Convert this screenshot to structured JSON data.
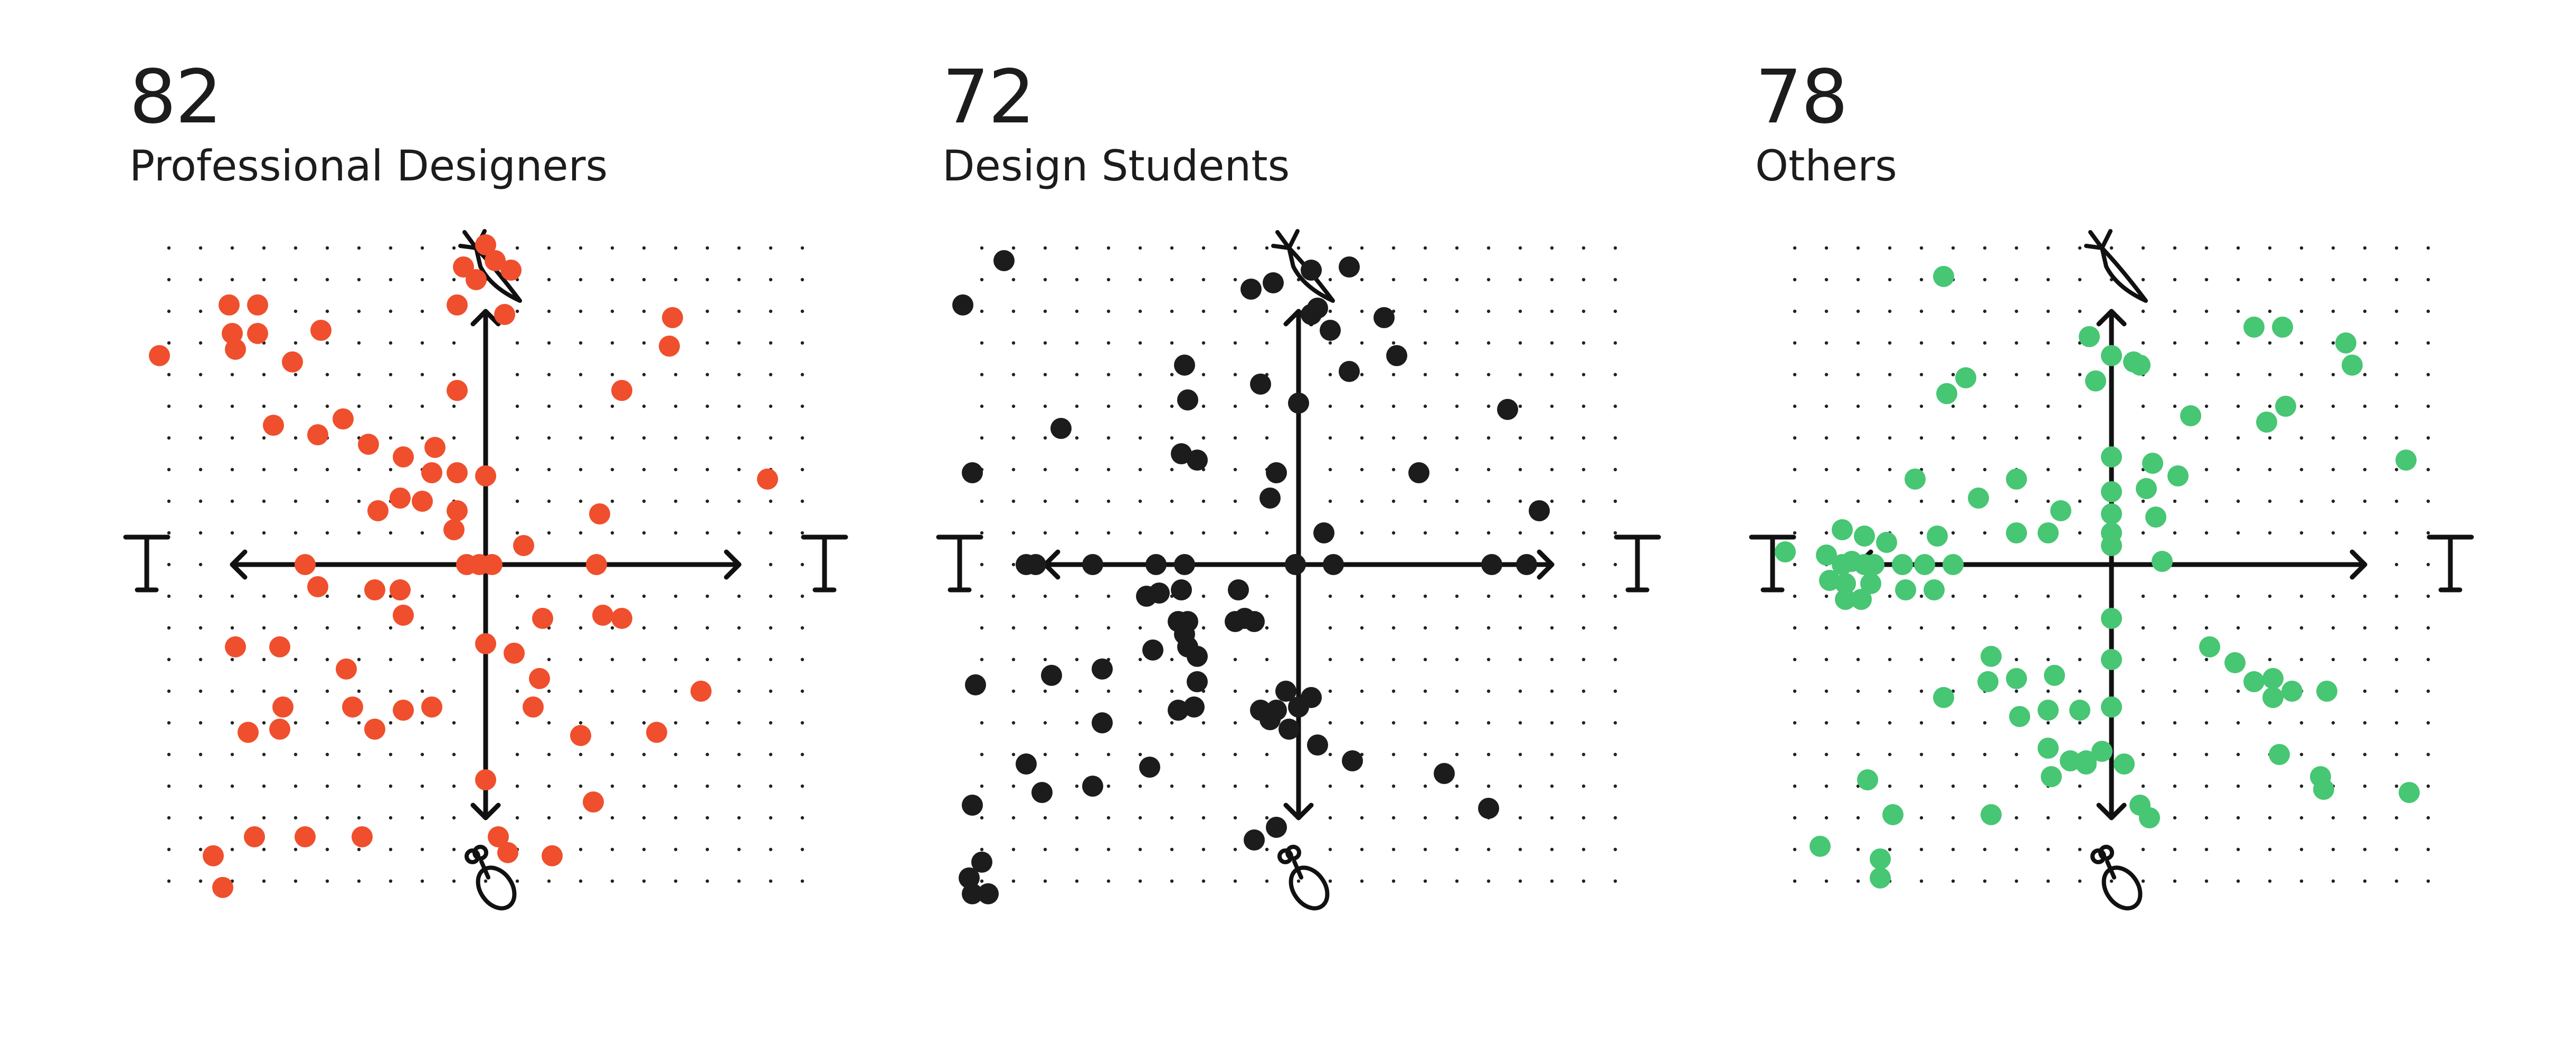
{
  "colors": {
    "professional": "#ef4f2c",
    "students": "#1c1c1c",
    "others": "#47c673",
    "axes": "#111111",
    "grid": "#222222"
  },
  "icons": {
    "top": "carrot-icon",
    "bottom": "drumstick-icon",
    "left": "tofu-T-icon",
    "right": "tofu-T-icon"
  },
  "chart_data": [
    {
      "type": "scatter",
      "value": "82",
      "label": "Professional Designers",
      "xlim": [
        -10,
        10
      ],
      "ylim": [
        -10,
        10
      ],
      "grid": true,
      "x": [
        0,
        0.3,
        -0.7,
        0.8,
        -0.3,
        -0.9,
        0.6,
        -8.1,
        -7.2,
        -8.0,
        -7.2,
        -5.2,
        -10.3,
        -7.9,
        -6.1,
        5.9,
        5.8,
        4.3,
        -0.9,
        -6.7,
        -5.3,
        -4.5,
        -2.6,
        -3.7,
        -1.6,
        -0.9,
        -1.7,
        0,
        8.9,
        -2.0,
        -2.7,
        -0.9,
        -3.4,
        -1.0,
        1.2,
        3.6,
        -5.7,
        -0.6,
        -0.2,
        0.2,
        -5.3,
        -3.5,
        -2.7,
        3.5,
        -2.6,
        1.8,
        3.7,
        4.3,
        -7.9,
        -6.5,
        -4.4,
        0,
        0.9,
        1.7,
        -6.4,
        -4.2,
        -1.7,
        1.5,
        6.8,
        -7.5,
        -6.5,
        -3.5,
        -2.6,
        3.0,
        5.4,
        0,
        3.4,
        -7.3,
        -5.7,
        -3.9,
        0.4,
        -8.6,
        -8.3,
        2.1,
        0.7
      ],
      "y": [
        10.1,
        9.6,
        9.4,
        9.3,
        9.0,
        8.2,
        7.9,
        8.2,
        8.2,
        7.3,
        7.3,
        7.4,
        6.6,
        6.8,
        6.4,
        7.8,
        6.9,
        5.5,
        5.5,
        4.4,
        4.1,
        4.6,
        3.4,
        3.8,
        3.7,
        2.9,
        2.9,
        2.8,
        2.7,
        2.0,
        2.1,
        1.7,
        1.7,
        1.1,
        0.6,
        1.6,
        0,
        0,
        0,
        0,
        -0.7,
        -0.8,
        -0.8,
        0,
        -1.6,
        -1.7,
        -1.6,
        -1.7,
        -2.6,
        -2.6,
        -3.3,
        -2.5,
        -2.8,
        -3.6,
        -4.5,
        -4.5,
        -4.5,
        -4.5,
        -4.0,
        -5.3,
        -5.2,
        -5.2,
        -4.6,
        -5.4,
        -5.3,
        -6.8,
        -7.5,
        -8.6,
        -8.6,
        -8.6,
        -8.6,
        -9.2,
        -10.2,
        -9.2,
        -9.1
      ]
    },
    {
      "type": "scatter",
      "value": "72",
      "label": "Design Students",
      "xlim": [
        -10,
        10
      ],
      "ylim": [
        -10,
        10
      ],
      "grid": true,
      "x": [
        -9.3,
        -10.6,
        0.4,
        1.6,
        -1.5,
        -0.8,
        0.4,
        0.6,
        1.0,
        2.7,
        -3.6,
        -1.2,
        1.6,
        3.1,
        -7.5,
        6.6,
        -3.5,
        -3.7,
        -0.9,
        -3.2,
        -10.3,
        -0.7,
        3.8,
        7.6,
        0,
        -8.6,
        -8.3,
        -6.5,
        -4.5,
        -3.6,
        -0.1,
        6.1,
        7.2,
        0.8,
        1.1,
        -4.8,
        -4.4,
        -3.7,
        -1.9,
        -3.8,
        -3.5,
        -2.0,
        -1.7,
        -1.4,
        -10.2,
        -7.8,
        -6.2,
        -3.2,
        -4.6,
        -3.5,
        -3.6,
        -3.2,
        -0.4,
        -3.8,
        -6.2,
        -3.3,
        -8.6,
        -10.3,
        -8.1,
        -6.5,
        -4.7,
        0.6,
        -0.3,
        -1.2,
        -0.9,
        -0.7,
        0,
        0.4,
        1.7,
        4.6,
        6.0,
        -0.7,
        -1.4,
        -10.0,
        -10.4,
        -10.3,
        -9.8
      ],
      "y": [
        9.6,
        8.2,
        9.3,
        9.4,
        8.7,
        8.9,
        7.9,
        8.1,
        7.4,
        7.8,
        6.3,
        5.7,
        6.1,
        6.6,
        4.3,
        4.9,
        5.2,
        3.5,
        2.1,
        3.3,
        2.9,
        2.9,
        2.9,
        1.7,
        5.1,
        0,
        0,
        0,
        0,
        0,
        0,
        0,
        0,
        1.0,
        0,
        -1.0,
        -0.9,
        -0.8,
        -0.8,
        -1.8,
        -1.8,
        -1.8,
        -1.7,
        -1.8,
        -3.8,
        -3.5,
        -3.3,
        -3.7,
        -2.7,
        -2.6,
        -2.2,
        -2.9,
        -4.0,
        -4.6,
        -5.0,
        -4.5,
        -6.3,
        -7.6,
        -7.2,
        -7.0,
        -6.4,
        -5.7,
        -5.2,
        -4.6,
        -4.9,
        -4.6,
        -4.5,
        -4.2,
        -6.2,
        -6.6,
        -7.7,
        -8.3,
        -8.7,
        -9.4,
        -9.9,
        -10.4,
        -10.4
      ]
    },
    {
      "type": "scatter",
      "value": "78",
      "label": "Others",
      "xlim": [
        -10,
        10
      ],
      "ylim": [
        -10,
        10
      ],
      "grid": true,
      "x": [
        -5.3,
        4.5,
        5.4,
        7.4,
        7.6,
        -4.6,
        -5.2,
        -0.7,
        0,
        0.7,
        0.9,
        -0.5,
        2.5,
        4.9,
        5.5,
        9.3,
        -6.2,
        -4.2,
        -3.0,
        -1.6,
        -3.0,
        -2.0,
        1.1,
        1.3,
        2.1,
        -8.5,
        -7.8,
        -7.1,
        -5.5,
        0,
        0,
        0,
        0,
        0,
        1.4,
        1.6,
        -9.0,
        -8.2,
        -7.8,
        -8.5,
        -7.5,
        -6.6,
        -5.9,
        -5.0,
        -8.9,
        -8.4,
        -7.6,
        -10.3,
        -5.6,
        -8.4,
        -7.9,
        -6.5,
        0,
        0,
        0,
        -1.0,
        -1.8,
        3.1,
        3.9,
        4.5,
        5.1,
        5.1,
        5.7,
        6.8,
        -3.8,
        -3.9,
        -3.0,
        -2.9,
        -2.0,
        -2.0,
        -5.3,
        -0.8,
        0.4,
        0.9,
        -1.9,
        -0.8,
        1.2,
        5.3,
        6.6,
        6.7,
        9.4,
        -7.7,
        -6.9,
        -3.8,
        -1.3,
        -0.3,
        -9.2,
        -7.3,
        -7.3
      ],
      "y": [
        9.1,
        7.5,
        7.5,
        7.0,
        6.3,
        5.9,
        5.4,
        7.2,
        6.6,
        6.4,
        6.3,
        5.8,
        4.7,
        4.5,
        5.0,
        3.3,
        2.7,
        2.1,
        2.7,
        1.7,
        1.0,
        1.0,
        2.4,
        3.2,
        2.8,
        1.1,
        0.9,
        0.7,
        0.9,
        3.4,
        2.3,
        1.6,
        1.0,
        0.6,
        1.5,
        0.1,
        0.3,
        0.1,
        0,
        0,
        0,
        0,
        0,
        0,
        -0.5,
        -0.6,
        -0.6,
        0.4,
        -0.8,
        -1.1,
        -1.1,
        -0.8,
        -1.7,
        -3.0,
        -4.5,
        -4.6,
        -3.5,
        -2.6,
        -3.1,
        -3.7,
        -3.6,
        -4.2,
        -4.0,
        -4.0,
        -2.9,
        -3.7,
        -3.6,
        -4.8,
        -4.6,
        -5.8,
        -4.2,
        -6.3,
        -6.3,
        -7.6,
        -6.7,
        -6.2,
        -8.0,
        -6.0,
        -6.7,
        -7.1,
        -7.2,
        -6.8,
        -7.9,
        -7.9,
        -6.2,
        -5.9,
        -8.9,
        -9.3,
        -9.9
      ]
    }
  ]
}
